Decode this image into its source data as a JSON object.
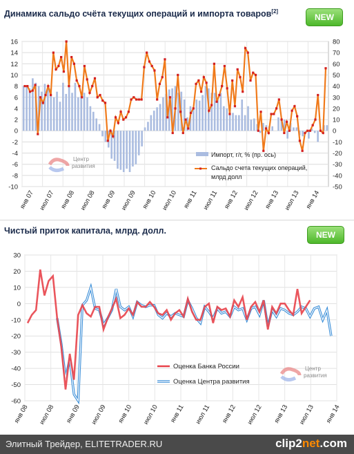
{
  "header": {
    "title1": "Динамика сальдо счёта текущих операций и импорта товаров",
    "title1_sup": "[2]",
    "title2": "Чистый приток капитала, млрд. долл.",
    "new_label": "NEW"
  },
  "logo": {
    "line1": "Центр",
    "line2": "развития"
  },
  "footer": {
    "text": "Элитный Трейдер, ELITETRADER.RU",
    "brand_a": "clip2",
    "brand_b": "net",
    "brand_c": ".com"
  },
  "colors": {
    "bar": "#aabce0",
    "line1": "#f07a1a",
    "marker": "#d42020",
    "red": "#e8424a",
    "blue": "#3a8ed8",
    "navy": "#3b4aa0"
  },
  "chart_data": [
    {
      "type": "bar+line",
      "title": "Динамика сальдо счёта текущих операций и импорта товаров",
      "x_tick_labels": [
        "янв 07",
        "июл 07",
        "янв 08",
        "июл 08",
        "янв 09",
        "июл 09",
        "янв 10",
        "июл 10",
        "янв 11",
        "июл 11",
        "янв 12",
        "июл 12",
        "янв 13",
        "июл 13",
        "янв 14"
      ],
      "y_left": {
        "min": -10,
        "max": 16,
        "step": 2
      },
      "y_right": {
        "min": -50,
        "max": 80,
        "step": 10
      },
      "grid": true,
      "legend_position": "bottom-right",
      "series": [
        {
          "name": "Импорт, г/г, % (пр. ось)",
          "kind": "bar",
          "axis": "right",
          "values": [
            40,
            40,
            38,
            47,
            43,
            40,
            35,
            42,
            40,
            38,
            30,
            35,
            26,
            43,
            33,
            48,
            34,
            43,
            30,
            34,
            34,
            30,
            22,
            17,
            11,
            6,
            -5,
            -10,
            -15,
            -25,
            -27,
            -34,
            -35,
            -37,
            -34,
            -37,
            -32,
            -30,
            -22,
            -14,
            3,
            8,
            14,
            18,
            21,
            24,
            30,
            33,
            37,
            38,
            40,
            34,
            35,
            28,
            12,
            22,
            21,
            28,
            27,
            32,
            40,
            38,
            34,
            34,
            28,
            34,
            22,
            20,
            22,
            16,
            14,
            14,
            28,
            14,
            22,
            10,
            11,
            6,
            -2,
            7,
            5,
            4,
            4,
            0,
            12,
            10,
            10,
            -7,
            7,
            3,
            3,
            -4,
            -5,
            -1,
            -7,
            2,
            -2,
            -10,
            0,
            5,
            5
          ]
        },
        {
          "name": "Сальдо счета текущих операций,  млрд долл",
          "kind": "line",
          "axis": "right",
          "values": [
            40,
            40,
            35,
            36,
            41,
            -3,
            30,
            25,
            32,
            40,
            32,
            70,
            55,
            58,
            66,
            53,
            80,
            40,
            66,
            60,
            45,
            40,
            30,
            58,
            46,
            34,
            40,
            47,
            30,
            32,
            27,
            25,
            -9,
            0,
            -5,
            12,
            7,
            17,
            10,
            12,
            17,
            28,
            30,
            28,
            28,
            28,
            57,
            70,
            62,
            58,
            54,
            28,
            42,
            48,
            64,
            12,
            30,
            -2,
            20,
            50,
            17,
            -2,
            10,
            2,
            16,
            20,
            42,
            45,
            35,
            48,
            43,
            18,
            23,
            60,
            26,
            32,
            40,
            58,
            38,
            15,
            45,
            22,
            55,
            48,
            35,
            74,
            70,
            45,
            52,
            50,
            0,
            17,
            -18,
            2,
            -2,
            15,
            15,
            20,
            28,
            10,
            -2,
            8,
            0,
            18,
            22,
            13,
            -9,
            -18,
            -2,
            0,
            0,
            5,
            10,
            32,
            0,
            -2,
            56
          ]
        }
      ]
    },
    {
      "type": "line",
      "title": "Чистый приток капитала, млрд. долл.",
      "x_tick_labels": [
        "янв 08",
        "июл 08",
        "янв 09",
        "июл 09",
        "янв 10",
        "июл 10",
        "янв 11",
        "июл 11",
        "янв 12",
        "июл 12",
        "янв 13",
        "июл 13",
        "янв 14"
      ],
      "y": {
        "min": -60,
        "max": 30,
        "step": 10
      },
      "grid": true,
      "legend_position": "bottom-center",
      "series": [
        {
          "name": "Оценка Банка России",
          "values": [
            -12,
            -7,
            -4,
            21,
            5,
            14,
            17,
            -9,
            -27,
            -53,
            -31,
            -47,
            -7,
            -1,
            -6,
            -8,
            -2,
            -2,
            -16,
            -9,
            -3,
            3,
            -9,
            -7,
            -3,
            -7,
            1,
            -2,
            -2,
            1,
            -2,
            -6,
            -7,
            -4,
            -10,
            -6,
            -4,
            -8,
            3,
            -5,
            -10,
            -10,
            -2,
            0,
            -12,
            -2,
            -4,
            -3,
            -8,
            2,
            -2,
            4,
            -10,
            -2,
            1,
            -5,
            2,
            -16,
            -2,
            -6,
            0,
            0,
            -4,
            -7,
            9,
            -6,
            -2,
            2
          ]
        },
        {
          "name": "Оценка Центра развития",
          "values": [
            null,
            null,
            null,
            null,
            null,
            null,
            null,
            -9,
            -25,
            -46,
            -34,
            -56,
            -62,
            -1,
            2,
            10,
            -3,
            -4,
            -13,
            -9,
            -4,
            9,
            -2,
            -4,
            -2,
            -8,
            1,
            -1,
            -2,
            -1,
            -1,
            -7,
            -9,
            -6,
            -8,
            -6,
            -7,
            -8,
            2,
            -3,
            -9,
            -12,
            -2,
            -5,
            -9,
            -3,
            -6,
            -5,
            -8,
            -2,
            -4,
            -3,
            -10,
            -3,
            -2,
            -7,
            2,
            -14,
            -4,
            -8,
            -3,
            -4,
            -6,
            -7,
            -5,
            -2,
            -3,
            -8,
            -3,
            -2,
            -10,
            -4,
            -20
          ]
        }
      ]
    }
  ]
}
